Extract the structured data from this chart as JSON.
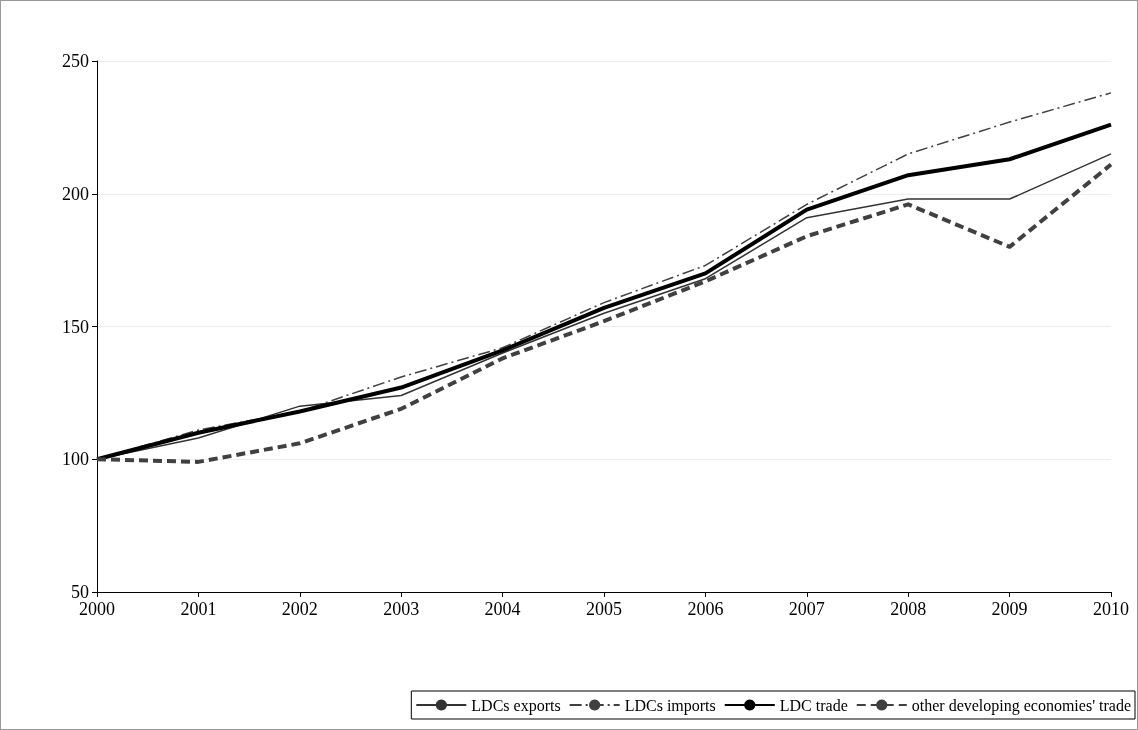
{
  "chart_data": {
    "type": "line",
    "x": [
      2000,
      2001,
      2002,
      2003,
      2004,
      2005,
      2006,
      2007,
      2008,
      2009,
      2010
    ],
    "xlim": [
      2000,
      2010
    ],
    "xticks": [
      2000,
      2001,
      2002,
      2003,
      2004,
      2005,
      2006,
      2007,
      2008,
      2009,
      2010
    ],
    "ylim": [
      50,
      250
    ],
    "yticks": [
      50,
      100,
      150,
      200,
      250
    ],
    "grid": "y",
    "legend": "bottom right",
    "marker": "none",
    "series": [
      {
        "name": "LDCs exports",
        "color": "#333333",
        "line_style": "solid",
        "values": [
          100,
          108,
          120,
          124,
          140,
          155,
          168,
          191,
          198,
          198,
          215
        ]
      },
      {
        "name": "LDCs imports",
        "color": "#404040",
        "line_style": "dashdot",
        "values": [
          100,
          111,
          118,
          131,
          142,
          159,
          173,
          196,
          215,
          227,
          238
        ]
      },
      {
        "name": "LDC trade",
        "color": "#000000",
        "line_style": "solid",
        "values": [
          100,
          110,
          118,
          127,
          141,
          157,
          170,
          194,
          207,
          213,
          226
        ]
      },
      {
        "name": "other developing economies' trade",
        "color": "#404040",
        "line_style": "dashed",
        "values": [
          100,
          99,
          106,
          119,
          138,
          152,
          167,
          184,
          196,
          180,
          211
        ]
      }
    ]
  }
}
